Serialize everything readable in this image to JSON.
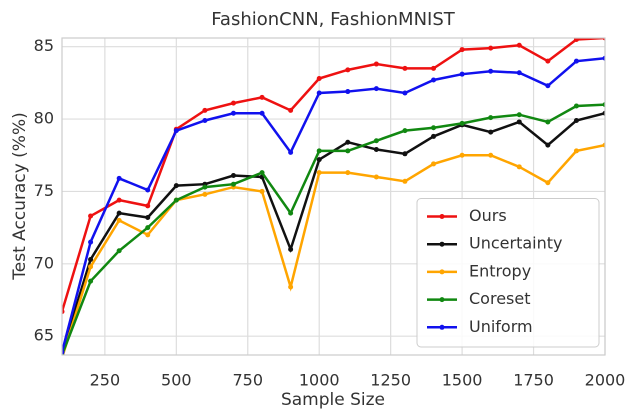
{
  "chart_data": {
    "type": "line",
    "title": "FashionCNN, FashionMNIST",
    "xlabel": "Sample Size",
    "ylabel": "Test Accuracy (%%)",
    "x": [
      100,
      200,
      300,
      400,
      500,
      600,
      700,
      800,
      900,
      1000,
      1100,
      1200,
      1300,
      1400,
      1500,
      1600,
      1700,
      1800,
      1900,
      2000
    ],
    "series": [
      {
        "name": "Ours",
        "color": "#ee1111",
        "values": [
          66.7,
          73.3,
          74.4,
          74.0,
          79.3,
          80.6,
          81.1,
          81.5,
          80.6,
          82.8,
          83.4,
          83.8,
          83.5,
          83.5,
          84.8,
          84.9,
          85.1,
          84.0,
          85.5,
          85.6
        ]
      },
      {
        "name": "Uncertainty",
        "color": "#111111",
        "values": [
          63.9,
          70.3,
          73.5,
          73.2,
          75.4,
          75.5,
          76.1,
          76.0,
          71.0,
          77.2,
          78.4,
          77.9,
          77.6,
          78.8,
          79.6,
          79.1,
          79.8,
          78.2,
          79.9,
          80.4
        ]
      },
      {
        "name": "Entropy",
        "color": "#ffa500",
        "values": [
          63.5,
          69.8,
          73.0,
          72.0,
          74.4,
          74.8,
          75.3,
          75.0,
          68.4,
          76.3,
          76.3,
          76.0,
          75.7,
          76.9,
          77.5,
          77.5,
          76.7,
          75.6,
          77.8,
          78.2
        ]
      },
      {
        "name": "Coreset",
        "color": "#118811",
        "values": [
          63.7,
          68.8,
          70.9,
          72.5,
          74.4,
          75.3,
          75.5,
          76.3,
          73.5,
          77.8,
          77.8,
          78.5,
          79.2,
          79.4,
          79.7,
          80.1,
          80.3,
          79.8,
          80.9,
          81.0
        ]
      },
      {
        "name": "Uniform",
        "color": "#1111ee",
        "values": [
          63.9,
          71.5,
          75.9,
          75.1,
          79.2,
          79.9,
          80.4,
          80.4,
          77.7,
          81.8,
          81.9,
          82.1,
          81.8,
          82.7,
          83.1,
          83.3,
          83.2,
          82.3,
          84.0,
          84.2
        ]
      }
    ],
    "xlim": [
      100,
      2000
    ],
    "ylim": [
      63.7,
      85.6
    ],
    "xticks": [
      250,
      500,
      750,
      1000,
      1250,
      1500,
      1750,
      2000
    ],
    "yticks": [
      65,
      70,
      75,
      80,
      85
    ],
    "grid": true,
    "legend": "lower right"
  }
}
